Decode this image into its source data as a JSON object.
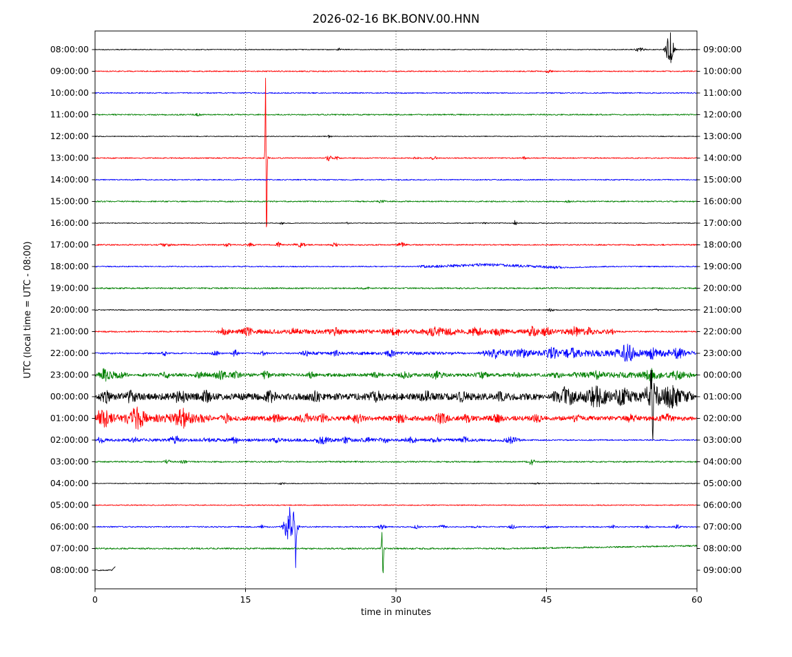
{
  "title": "2026-02-16 BK.BONV.00.HNN",
  "date": "2026-02-16",
  "station_id": "BK.BONV.00.HNN",
  "xlabel": "time in minutes",
  "ylabel": "UTC (local time = UTC - 08:00)",
  "x_ticks": [
    0,
    15,
    30,
    45,
    60
  ],
  "grid_x": [
    15,
    30,
    45
  ],
  "colors": {
    "black": "#000000",
    "red": "#ff0000",
    "blue": "#0000ff",
    "green": "#008000"
  },
  "chart_data": {
    "type": "line",
    "subtype": "helicorder-dayplot",
    "x_range_minutes": [
      0,
      60
    ],
    "minutes_per_row": 60,
    "row_count": 25,
    "event_format": "[center_minute, width_minutes, noise_amplitude_px]",
    "pulse_format": "[center_minute, width_minutes, amplitude_px, direction(1=down,-1=up)]",
    "segment_format": "[start_minute, end_minute, noise_amplitude_px]",
    "drift_format": "[start_minute, end_minute, dy_px]",
    "rows": [
      {
        "utc": "08:00:00",
        "local": "09:00:00",
        "color": "black",
        "base": 0.6,
        "events": [
          [
            24.3,
            0.2,
            2
          ],
          [
            54.3,
            0.4,
            3
          ],
          [
            57.3,
            0.35,
            25
          ]
        ]
      },
      {
        "utc": "09:00:00",
        "local": "10:00:00",
        "color": "red",
        "base": 0.8,
        "events": [
          [
            45.2,
            0.3,
            1.5
          ]
        ]
      },
      {
        "utc": "10:00:00",
        "local": "11:00:00",
        "color": "blue",
        "base": 0.8,
        "events": []
      },
      {
        "utc": "11:00:00",
        "local": "12:00:00",
        "color": "green",
        "base": 0.9,
        "events": [
          [
            10.2,
            0.3,
            1.2
          ]
        ]
      },
      {
        "utc": "12:00:00",
        "local": "13:00:00",
        "color": "black",
        "base": 0.55,
        "events": [
          [
            23.4,
            0.15,
            3
          ]
        ]
      },
      {
        "utc": "13:00:00",
        "local": "14:00:00",
        "color": "red",
        "base": 0.8,
        "events": [
          [
            17.05,
            0.15,
            8
          ],
          [
            23.3,
            0.25,
            4
          ],
          [
            24.1,
            0.2,
            3
          ],
          [
            32,
            0.3,
            2
          ],
          [
            33.8,
            0.3,
            2
          ],
          [
            42.8,
            0.15,
            3.5
          ]
        ],
        "pulses": [
          [
            17.0,
            0.05,
            115,
            -1
          ],
          [
            17.1,
            0.05,
            120,
            1
          ]
        ]
      },
      {
        "utc": "14:00:00",
        "local": "15:00:00",
        "color": "blue",
        "base": 0.8,
        "events": []
      },
      {
        "utc": "15:00:00",
        "local": "16:00:00",
        "color": "green",
        "base": 0.9,
        "events": [
          [
            28.5,
            0.5,
            1.3
          ],
          [
            47.2,
            0.3,
            1.2
          ]
        ]
      },
      {
        "utc": "16:00:00",
        "local": "17:00:00",
        "color": "black",
        "base": 0.55,
        "events": [
          [
            18.6,
            0.2,
            1.5
          ],
          [
            25.2,
            0.15,
            2
          ],
          [
            38.8,
            0.2,
            1.5
          ],
          [
            41.9,
            0.12,
            4.5
          ]
        ]
      },
      {
        "utc": "17:00:00",
        "local": "18:00:00",
        "color": "red",
        "base": 0.9,
        "events": [
          [
            7,
            0.5,
            2.5
          ],
          [
            13.2,
            0.3,
            2.5
          ],
          [
            15.5,
            0.3,
            2
          ],
          [
            18.3,
            0.25,
            3.5
          ],
          [
            20.4,
            0.5,
            3.5
          ],
          [
            23.9,
            0.3,
            2.5
          ],
          [
            30.6,
            0.4,
            3
          ]
        ]
      },
      {
        "utc": "18:00:00",
        "local": "19:00:00",
        "color": "blue",
        "base": 0.8,
        "segments": [
          [
            32,
            47,
            1.2
          ]
        ],
        "pulses": [
          [
            39,
            3.5,
            2.5,
            -1
          ],
          [
            47,
            2.5,
            1.5,
            1
          ]
        ]
      },
      {
        "utc": "19:00:00",
        "local": "20:00:00",
        "color": "green",
        "base": 1.0,
        "events": [
          [
            27,
            0.4,
            1.2
          ]
        ]
      },
      {
        "utc": "20:00:00",
        "local": "21:00:00",
        "color": "black",
        "base": 0.65,
        "events": [
          [
            45.4,
            0.3,
            1.8
          ],
          [
            56,
            0.3,
            1.2
          ]
        ]
      },
      {
        "utc": "21:00:00",
        "local": "22:00:00",
        "color": "red",
        "base": 1.0,
        "segments": [
          [
            12,
            52,
            2.2
          ]
        ],
        "events": [
          [
            12.8,
            0.4,
            3
          ],
          [
            15.2,
            0.4,
            4
          ],
          [
            20,
            0.4,
            3
          ],
          [
            24,
            0.5,
            3.5
          ],
          [
            30,
            0.6,
            3.5
          ],
          [
            33.8,
            0.8,
            4.5
          ],
          [
            35.5,
            0.5,
            4
          ],
          [
            38,
            0.6,
            4
          ],
          [
            40.2,
            0.5,
            3.5
          ],
          [
            43.6,
            0.5,
            5
          ],
          [
            45,
            0.4,
            4
          ],
          [
            47.8,
            0.5,
            4.5
          ],
          [
            49.2,
            0.4,
            3.5
          ],
          [
            51.5,
            0.3,
            3
          ]
        ]
      },
      {
        "utc": "22:00:00",
        "local": "23:00:00",
        "color": "blue",
        "base": 1.0,
        "segments": [
          [
            20,
            37,
            1.2
          ],
          [
            38,
            60,
            3.5
          ]
        ],
        "events": [
          [
            7,
            0.3,
            3
          ],
          [
            12,
            0.4,
            3
          ],
          [
            13.9,
            0.3,
            5
          ],
          [
            16.8,
            0.3,
            3
          ],
          [
            21,
            0.3,
            2.5
          ],
          [
            24,
            0.4,
            2.5
          ],
          [
            29.5,
            0.4,
            4
          ],
          [
            40,
            0.4,
            4
          ],
          [
            42.5,
            0.5,
            4
          ],
          [
            45.5,
            0.6,
            4.5
          ],
          [
            47.5,
            0.5,
            4
          ],
          [
            53,
            0.8,
            9
          ],
          [
            55.5,
            0.5,
            5
          ],
          [
            58,
            0.6,
            4.5
          ]
        ]
      },
      {
        "utc": "23:00:00",
        "local": "00:00:00",
        "color": "green",
        "base": 1.1,
        "segments": [
          [
            0,
            3.5,
            4
          ],
          [
            4,
            47,
            1.3
          ],
          [
            47,
            60,
            3
          ]
        ],
        "events": [
          [
            1,
            0.5,
            5
          ],
          [
            7,
            0.4,
            3.5
          ],
          [
            10.5,
            0.5,
            4
          ],
          [
            12.5,
            0.6,
            4.5
          ],
          [
            14,
            0.5,
            4
          ],
          [
            17,
            0.4,
            4
          ],
          [
            21.5,
            0.4,
            2.5
          ],
          [
            28,
            0.4,
            2
          ],
          [
            31,
            0.5,
            3.5
          ],
          [
            34,
            0.6,
            4
          ],
          [
            38.5,
            0.5,
            3.5
          ],
          [
            42,
            0.4,
            2.5
          ],
          [
            46,
            0.5,
            4
          ],
          [
            50,
            0.5,
            3.5
          ],
          [
            55.5,
            0.6,
            6
          ],
          [
            58,
            0.5,
            4
          ]
        ]
      },
      {
        "utc": "00:00:00",
        "local": "01:00:00",
        "color": "black",
        "base": 1.0,
        "segments": [
          [
            0,
            45,
            3.8
          ],
          [
            45,
            60,
            6.5
          ]
        ],
        "events": [
          [
            1,
            0.5,
            6
          ],
          [
            3.5,
            0.5,
            6
          ],
          [
            8.5,
            0.6,
            6
          ],
          [
            11,
            0.5,
            5
          ],
          [
            17.5,
            0.5,
            5
          ],
          [
            22,
            0.5,
            4.5
          ],
          [
            28,
            0.6,
            5
          ],
          [
            33,
            0.5,
            4.5
          ],
          [
            36.5,
            0.5,
            4.5
          ],
          [
            40.5,
            0.5,
            4
          ],
          [
            47,
            0.6,
            8
          ],
          [
            50,
            0.8,
            9
          ],
          [
            52.5,
            0.6,
            8
          ],
          [
            55.5,
            0.7,
            16
          ],
          [
            57.5,
            0.8,
            11
          ]
        ],
        "pulses": [
          [
            55.6,
            0.06,
            50,
            1
          ],
          [
            55.45,
            0.06,
            35,
            -1
          ]
        ]
      },
      {
        "utc": "01:00:00",
        "local": "02:00:00",
        "color": "red",
        "base": 1.0,
        "segments": [
          [
            0,
            12,
            5
          ],
          [
            12,
            60,
            2.4
          ]
        ],
        "events": [
          [
            0.7,
            0.6,
            11
          ],
          [
            4.2,
            0.7,
            13
          ],
          [
            8.6,
            0.7,
            10
          ],
          [
            13,
            0.4,
            5
          ],
          [
            18,
            0.5,
            4
          ],
          [
            21,
            0.5,
            5
          ],
          [
            22.7,
            0.4,
            4.5
          ],
          [
            26,
            0.6,
            5
          ],
          [
            30.5,
            0.5,
            4.5
          ],
          [
            34.5,
            0.6,
            5
          ],
          [
            37,
            0.4,
            4
          ],
          [
            40,
            0.5,
            4.5
          ],
          [
            44,
            0.4,
            3.5
          ],
          [
            48,
            0.4,
            3
          ],
          [
            53.5,
            0.5,
            3.5
          ],
          [
            57,
            0.5,
            4.5
          ]
        ]
      },
      {
        "utc": "02:00:00",
        "local": "03:00:00",
        "color": "blue",
        "base": 0.9,
        "segments": [
          [
            0,
            43,
            1.3
          ]
        ],
        "events": [
          [
            0.5,
            0.3,
            3.5
          ],
          [
            4,
            0.4,
            2.5
          ],
          [
            8,
            0.5,
            4.5
          ],
          [
            11,
            0.4,
            3
          ],
          [
            14,
            0.4,
            3.5
          ],
          [
            18,
            0.4,
            2.5
          ],
          [
            22.7,
            0.6,
            4.5
          ],
          [
            25,
            0.4,
            3
          ],
          [
            27,
            0.4,
            3.5
          ],
          [
            28.8,
            0.4,
            3.5
          ],
          [
            31.5,
            0.5,
            3.5
          ],
          [
            34,
            0.4,
            2.5
          ],
          [
            36.8,
            0.4,
            3
          ],
          [
            41.5,
            0.5,
            3.5
          ]
        ]
      },
      {
        "utc": "03:00:00",
        "local": "04:00:00",
        "color": "green",
        "base": 1.0,
        "events": [
          [
            7.2,
            0.3,
            2.5
          ],
          [
            8.8,
            0.25,
            2.5
          ],
          [
            43.5,
            0.3,
            4.5
          ]
        ]
      },
      {
        "utc": "04:00:00",
        "local": "05:00:00",
        "color": "black",
        "base": 0.55,
        "events": [
          [
            18.6,
            0.3,
            1.5
          ],
          [
            44,
            0.3,
            0.8
          ]
        ]
      },
      {
        "utc": "05:00:00",
        "local": "06:00:00",
        "color": "red",
        "base": 0.7,
        "events": []
      },
      {
        "utc": "06:00:00",
        "local": "07:00:00",
        "color": "blue",
        "base": 0.9,
        "events": [
          [
            16.6,
            0.25,
            2.5
          ],
          [
            19.0,
            0.3,
            10
          ],
          [
            19.5,
            0.35,
            18
          ],
          [
            20.1,
            0.2,
            8
          ],
          [
            28.6,
            0.3,
            3
          ],
          [
            32,
            0.3,
            2.5
          ],
          [
            34.6,
            0.3,
            2.5
          ],
          [
            38,
            0.3,
            1.8
          ],
          [
            41.6,
            0.3,
            2.5
          ],
          [
            45,
            0.3,
            1.5
          ],
          [
            51.6,
            0.3,
            2.5
          ],
          [
            55,
            0.3,
            1.5
          ],
          [
            58,
            0.3,
            2.5
          ]
        ],
        "pulses": [
          [
            19.45,
            0.05,
            30,
            -1
          ],
          [
            20.0,
            0.05,
            55,
            1
          ],
          [
            19.15,
            0.04,
            22,
            1
          ],
          [
            19.8,
            0.05,
            26,
            -1
          ]
        ]
      },
      {
        "utc": "07:00:00",
        "local": "08:00:00",
        "color": "green",
        "base": 1.1,
        "events": [
          [
            28.7,
            0.15,
            3
          ]
        ],
        "pulses": [
          [
            28.7,
            0.06,
            38,
            1
          ],
          [
            28.6,
            0.05,
            26,
            -1
          ]
        ],
        "drift": [
          42,
          60,
          -4
        ]
      },
      {
        "utc": "08:00:00",
        "local": "09:00:00",
        "color": "black",
        "base": 0.8,
        "t_end": 2.0,
        "drift": [
          1.7,
          2.0,
          -5
        ],
        "events": []
      }
    ]
  }
}
